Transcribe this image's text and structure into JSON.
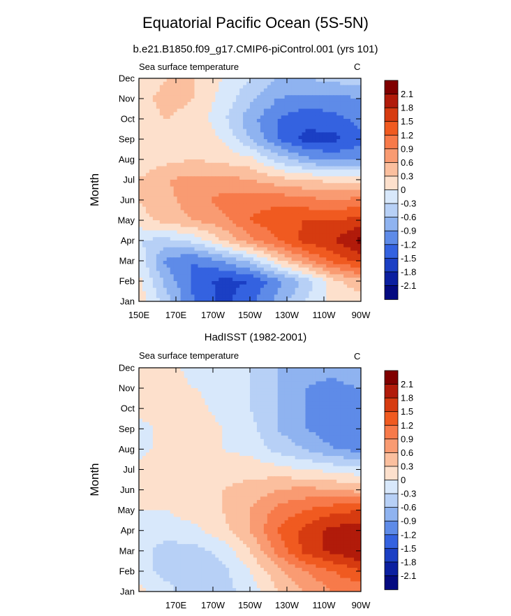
{
  "figure": {
    "title": "Equatorial Pacific Ocean (5S-5N)"
  },
  "colorbar": {
    "levels": [
      "2.1",
      "1.8",
      "1.5",
      "1.2",
      "0.9",
      "0.6",
      "0.3",
      "0",
      "-0.3",
      "-0.6",
      "-0.9",
      "-1.2",
      "-1.5",
      "-1.8",
      "-2.1"
    ],
    "colors": [
      "#800000",
      "#b11b0a",
      "#d63b10",
      "#f05a20",
      "#f77a4a",
      "#f99b72",
      "#fbbf9e",
      "#fde0cc",
      "#d8e8fb",
      "#b7d0f6",
      "#8fb3f0",
      "#5e8be8",
      "#3462e0",
      "#1b3fc4",
      "#0b1fa0",
      "#040a80"
    ]
  },
  "chart_data": [
    {
      "type": "heatmap",
      "title": "b.e21.B1850.f09_g17.CMIP6-piControl.001 (yrs 101)",
      "panel_label": "Sea surface temperature",
      "units": "C",
      "xlabel": "",
      "ylabel": "Month",
      "x_ticks": [
        "150E",
        "170E",
        "170W",
        "150W",
        "130W",
        "110W",
        "90W"
      ],
      "y_ticks": [
        "Jan",
        "Feb",
        "Mar",
        "Apr",
        "May",
        "Jun",
        "Jul",
        "Aug",
        "Sep",
        "Oct",
        "Nov",
        "Dec"
      ],
      "xlim_deg_east": [
        150,
        270
      ],
      "grid_lon_deg_east": [
        150,
        165,
        180,
        195,
        210,
        225,
        240,
        255,
        270
      ],
      "values": [
        [
          0.2,
          -0.5,
          -1.2,
          -1.6,
          -1.3,
          -0.8,
          -0.3,
          0.1,
          0.1
        ],
        [
          0.1,
          -0.7,
          -1.3,
          -1.6,
          -1.5,
          -1.0,
          -0.5,
          0.2,
          0.5
        ],
        [
          -0.1,
          -1.0,
          -1.2,
          -0.9,
          -0.5,
          0.2,
          0.8,
          1.3,
          1.6
        ],
        [
          -0.3,
          -0.4,
          -0.2,
          0.3,
          0.8,
          1.2,
          1.6,
          1.8,
          2.2
        ],
        [
          0.2,
          0.4,
          0.6,
          0.8,
          1.2,
          1.4,
          1.5,
          1.5,
          1.6
        ],
        [
          0.3,
          0.5,
          0.8,
          1.0,
          1.1,
          1.1,
          1.0,
          0.9,
          1.0
        ],
        [
          0.3,
          0.6,
          0.7,
          0.7,
          0.6,
          0.4,
          0.3,
          0.2,
          0.2
        ],
        [
          0.1,
          0.2,
          0.3,
          0.2,
          0.1,
          -0.4,
          -0.8,
          -1.0,
          -0.9
        ],
        [
          0.1,
          0.2,
          0.2,
          0.0,
          -0.6,
          -1.2,
          -1.6,
          -1.6,
          -1.3
        ],
        [
          0.2,
          0.3,
          0.2,
          -0.2,
          -0.8,
          -1.2,
          -1.4,
          -1.3,
          -1.1
        ],
        [
          0.2,
          0.4,
          0.3,
          -0.1,
          -0.5,
          -0.9,
          -1.0,
          -1.0,
          -0.9
        ],
        [
          0.1,
          0.3,
          0.3,
          0.0,
          -0.3,
          -0.6,
          -0.6,
          -0.5,
          -0.4
        ]
      ]
    },
    {
      "type": "heatmap",
      "title": "HadISST (1982-2001)",
      "panel_label": "Sea surface temperature",
      "units": "C",
      "xlabel": "",
      "ylabel": "Month",
      "x_ticks": [
        "",
        "170E",
        "170W",
        "150W",
        "130W",
        "110W",
        "90W"
      ],
      "y_ticks": [
        "Jan",
        "Feb",
        "Mar",
        "Apr",
        "May",
        "Jun",
        "Jul",
        "Aug",
        "Sep",
        "Oct",
        "Nov",
        "Dec"
      ],
      "xlim_deg_east": [
        150,
        270
      ],
      "grid_lon_deg_east": [
        150,
        165,
        180,
        195,
        210,
        225,
        240,
        255,
        270
      ],
      "values": [
        [
          0.1,
          -0.2,
          -0.5,
          -0.4,
          -0.2,
          0.3,
          0.6,
          0.9,
          1.0
        ],
        [
          -0.2,
          -0.4,
          -0.5,
          -0.4,
          0.0,
          0.5,
          0.9,
          1.2,
          1.5
        ],
        [
          -0.2,
          -0.4,
          -0.4,
          -0.2,
          0.3,
          1.0,
          1.6,
          1.9,
          2.1
        ],
        [
          -0.2,
          -0.2,
          -0.1,
          0.2,
          0.6,
          1.2,
          1.6,
          1.9,
          2.0
        ],
        [
          0.0,
          0.0,
          0.2,
          0.3,
          0.6,
          1.0,
          1.2,
          1.4,
          1.5
        ],
        [
          0.1,
          0.1,
          0.2,
          0.3,
          0.4,
          0.6,
          0.7,
          0.6,
          0.5
        ],
        [
          0.1,
          0.2,
          0.2,
          0.2,
          0.2,
          0.1,
          0.0,
          -0.1,
          -0.2
        ],
        [
          -0.1,
          0.1,
          0.1,
          0.0,
          -0.1,
          -0.4,
          -0.6,
          -0.9,
          -1.0
        ],
        [
          -0.1,
          0.1,
          0.2,
          0.0,
          -0.2,
          -0.6,
          -0.9,
          -1.1,
          -1.2
        ],
        [
          0.1,
          0.1,
          0.1,
          -0.1,
          -0.3,
          -0.6,
          -0.9,
          -1.1,
          -1.1
        ],
        [
          0.1,
          0.1,
          0.0,
          -0.1,
          -0.3,
          -0.6,
          -0.9,
          -1.0,
          -0.9
        ],
        [
          0.1,
          0.1,
          -0.1,
          -0.2,
          -0.3,
          -0.6,
          -0.8,
          -0.8,
          -0.6
        ]
      ]
    }
  ]
}
